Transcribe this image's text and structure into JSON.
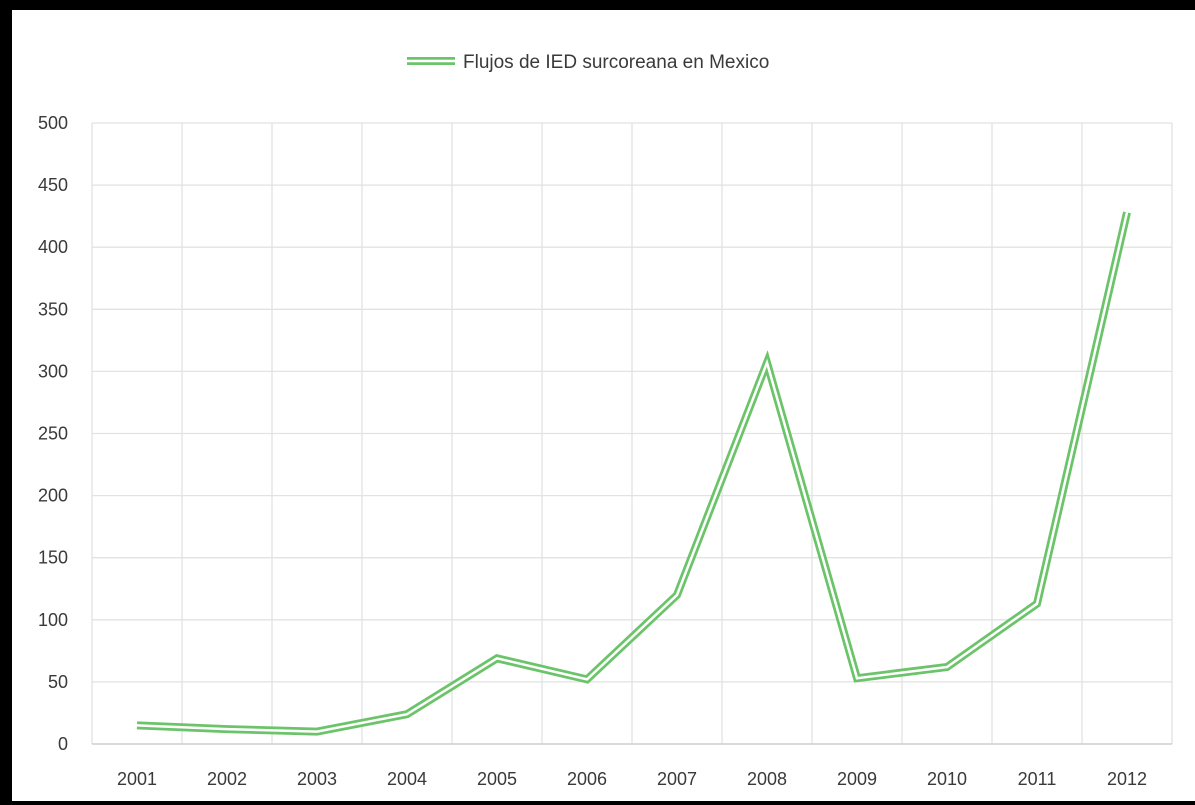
{
  "chart_data": {
    "type": "line",
    "title": "",
    "xlabel": "",
    "ylabel": "",
    "categories": [
      "2001",
      "2002",
      "2003",
      "2004",
      "2005",
      "2006",
      "2007",
      "2008",
      "2009",
      "2010",
      "2011",
      "2012"
    ],
    "series": [
      {
        "name": "Flujos de IED surcoreana en Mexico",
        "values": [
          15,
          12,
          10,
          24,
          69,
          52,
          120,
          307,
          53,
          62,
          113,
          428
        ],
        "color": "#6cc46a"
      }
    ],
    "ylim": [
      0,
      500
    ],
    "yticks": [
      "0",
      "50",
      "100",
      "150",
      "200",
      "250",
      "300",
      "350",
      "400",
      "450",
      "500"
    ],
    "grid": true,
    "legend_position": "top-center"
  }
}
